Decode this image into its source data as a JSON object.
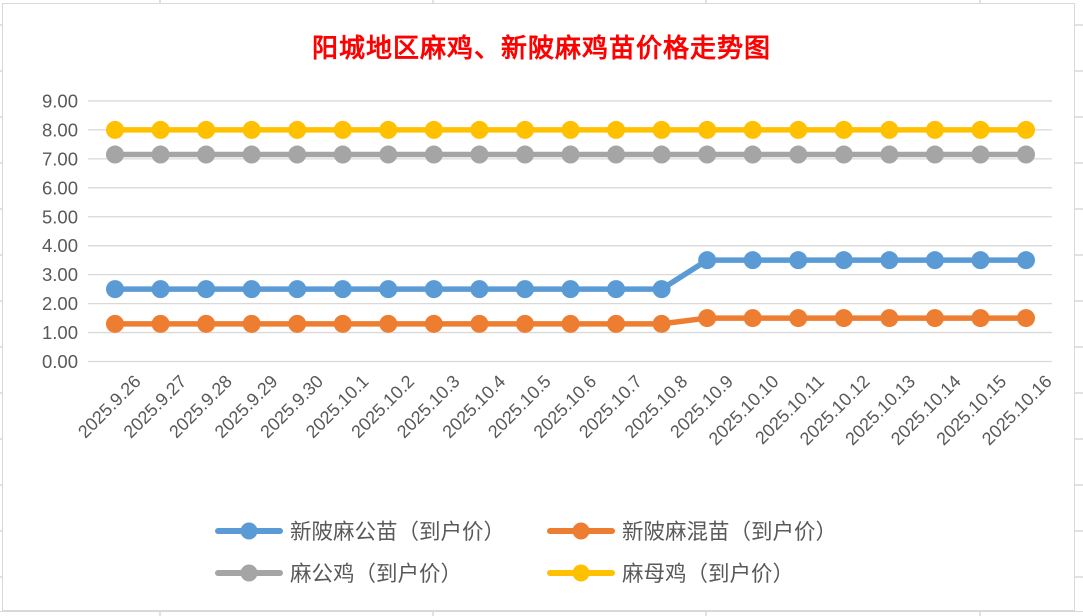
{
  "title": {
    "text": "阳城地区麻鸡、新陂麻鸡苗价格走势图",
    "color": "#FF0000"
  },
  "axis": {
    "label_color": "#595959",
    "grid_color": "#D9D9D9",
    "spreadsheet_line_color": "#D9D9D9"
  },
  "chart_data": {
    "type": "line",
    "title": "阳城地区麻鸡、新陂麻鸡苗价格走势图",
    "xlabel": "",
    "ylabel": "",
    "ylim": [
      0,
      9
    ],
    "ytick_step": 1,
    "ytick_labels": [
      "0.00",
      "1.00",
      "2.00",
      "3.00",
      "4.00",
      "5.00",
      "6.00",
      "7.00",
      "8.00",
      "9.00"
    ],
    "grid": "horizontal",
    "legend_position": "bottom",
    "categories": [
      "2025.9.26",
      "2025.9.27",
      "2025.9.28",
      "2025.9.29",
      "2025.9.30",
      "2025.10.1",
      "2025.10.2",
      "2025.10.3",
      "2025.10.4",
      "2025.10.5",
      "2025.10.6",
      "2025.10.7",
      "2025.10.8",
      "2025.10.9",
      "2025.10.10",
      "2025.10.11",
      "2025.10.12",
      "2025.10.13",
      "2025.10.14",
      "2025.10.15",
      "2025.10.16"
    ],
    "series": [
      {
        "name": "新陂麻公苗（到户价）",
        "color": "#5B9BD5",
        "values": [
          2.5,
          2.5,
          2.5,
          2.5,
          2.5,
          2.5,
          2.5,
          2.5,
          2.5,
          2.5,
          2.5,
          2.5,
          2.5,
          3.5,
          3.5,
          3.5,
          3.5,
          3.5,
          3.5,
          3.5,
          3.5
        ]
      },
      {
        "name": "新陂麻混苗（到户价）",
        "color": "#ED7D31",
        "values": [
          1.3,
          1.3,
          1.3,
          1.3,
          1.3,
          1.3,
          1.3,
          1.3,
          1.3,
          1.3,
          1.3,
          1.3,
          1.3,
          1.5,
          1.5,
          1.5,
          1.5,
          1.5,
          1.5,
          1.5,
          1.5
        ]
      },
      {
        "name": "麻公鸡（到户价）",
        "color": "#A5A5A5",
        "values": [
          7.15,
          7.15,
          7.15,
          7.15,
          7.15,
          7.15,
          7.15,
          7.15,
          7.15,
          7.15,
          7.15,
          7.15,
          7.15,
          7.15,
          7.15,
          7.15,
          7.15,
          7.15,
          7.15,
          7.15,
          7.15
        ]
      },
      {
        "name": "麻母鸡（到户价）",
        "color": "#FFC000",
        "values": [
          8,
          8,
          8,
          8,
          8,
          8,
          8,
          8,
          8,
          8,
          8,
          8,
          8,
          8,
          8,
          8,
          8,
          8,
          8,
          8,
          8
        ]
      }
    ]
  }
}
